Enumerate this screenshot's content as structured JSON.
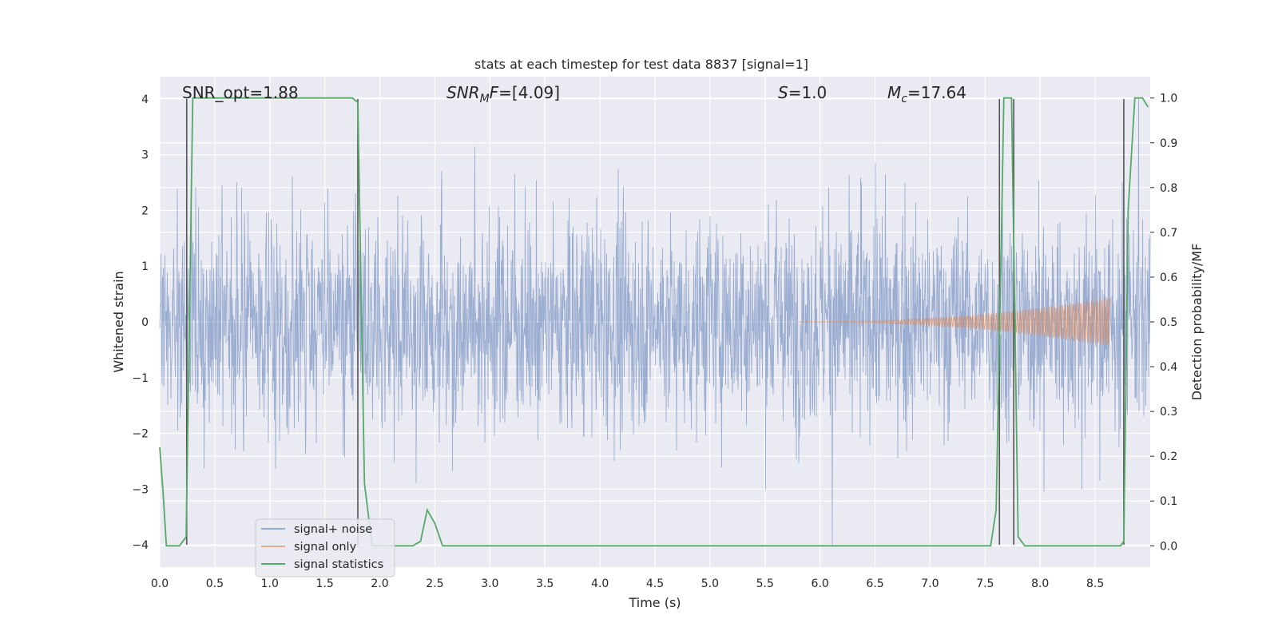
{
  "chart_data": {
    "type": "line",
    "title": "stats at each timestep for test data 8837 [signal=1]",
    "xlabel": "Time (s)",
    "ylabel_left": "Whitened strain",
    "ylabel_right": "Detection probability/MF",
    "xlim": [
      0,
      9
    ],
    "ylim_left": [
      -4.4,
      4.4
    ],
    "ylim_right": [
      -0.04762,
      1.04762
    ],
    "x_ticks": [
      "0.0",
      "0.5",
      "1.0",
      "1.5",
      "2.0",
      "2.5",
      "3.0",
      "3.5",
      "4.0",
      "4.5",
      "5.0",
      "5.5",
      "6.0",
      "6.5",
      "7.0",
      "7.5",
      "8.0",
      "8.5"
    ],
    "y_ticks_left": [
      "−4",
      "−3",
      "−2",
      "−1",
      "0",
      "1",
      "2",
      "3",
      "4"
    ],
    "y_ticks_right": [
      "0.0",
      "0.1",
      "0.2",
      "0.3",
      "0.4",
      "0.5",
      "0.6",
      "0.7",
      "0.8",
      "0.9",
      "1.0"
    ],
    "grid": true,
    "legend_position": "lower-left",
    "annotations": [
      {
        "name": "snr-opt",
        "text": "SNR_opt=1.88",
        "x": 0.19,
        "italic_prefix": ""
      },
      {
        "name": "snr-mf",
        "text": "SNR",
        "sub": "M",
        "rest": "F=[4.09]",
        "x": 2.6
      },
      {
        "name": "s-value",
        "text": "S",
        "rest": "=1.0",
        "x": 5.6
      },
      {
        "name": "mc-value",
        "text": "M",
        "sub": "c",
        "rest": "=17.64",
        "x": 6.6
      }
    ],
    "vlines_x": [
      0.245,
      1.8,
      7.63,
      7.76,
      8.76
    ],
    "series": [
      {
        "name": "signal+ noise",
        "color": "#4c72b0",
        "axis": "left",
        "description_values": "dense whitened noise, envelope about ±2.4 with spikes to ±4"
      },
      {
        "name": "signal only",
        "color": "#dd8452",
        "axis": "left",
        "chirp_start_x": 5.8,
        "chirp_end_x": 8.64,
        "chirp_peak_amplitude": 0.45
      },
      {
        "name": "signal statistics",
        "color": "#55a868",
        "axis": "right",
        "x": [
          0.0,
          0.03,
          0.06,
          0.18,
          0.24,
          0.3,
          1.75,
          1.8,
          1.86,
          1.93,
          2.3,
          2.37,
          2.43,
          2.5,
          2.57,
          7.55,
          7.6,
          7.65,
          7.67,
          7.74,
          7.8,
          7.86,
          8.73,
          8.76,
          8.8,
          8.86,
          8.93,
          8.98
        ],
        "values": [
          0.22,
          0.12,
          0.0,
          0.0,
          0.02,
          1.0,
          1.0,
          0.99,
          0.14,
          0.0,
          0.0,
          0.01,
          0.08,
          0.05,
          0.0,
          0.0,
          0.08,
          0.72,
          1.0,
          1.0,
          0.02,
          0.0,
          0.0,
          0.01,
          0.75,
          1.0,
          1.0,
          0.98
        ]
      }
    ]
  }
}
